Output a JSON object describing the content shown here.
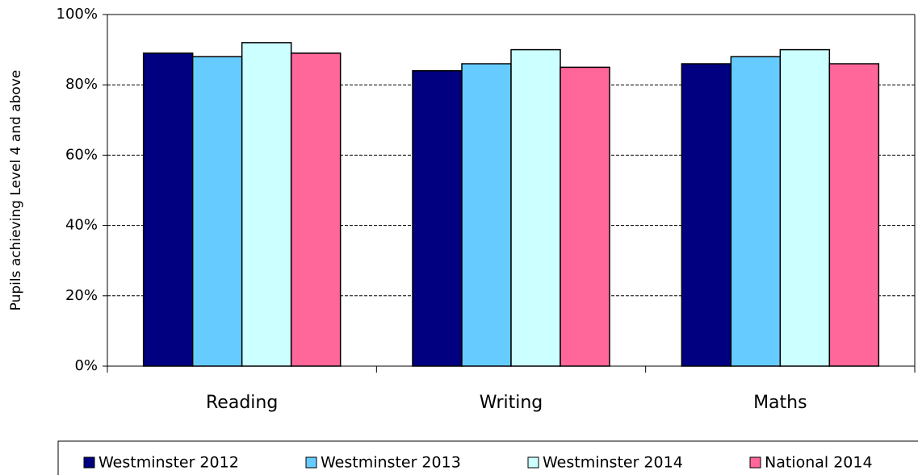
{
  "chart_data": {
    "type": "bar",
    "y_label": "Pupils achieving Level 4 and above",
    "categories": [
      "Reading",
      "Writing",
      "Maths"
    ],
    "series": [
      {
        "name": "Westminster 2012",
        "color": "#000080",
        "values": [
          89,
          84,
          86
        ]
      },
      {
        "name": "Westminster 2013",
        "color": "#66ccff",
        "values": [
          88,
          86,
          88
        ]
      },
      {
        "name": "Westminster 2014",
        "color": "#ccffff",
        "values": [
          92,
          90,
          90
        ]
      },
      {
        "name": "National 2014",
        "color": "#ff6699",
        "values": [
          89,
          85,
          86
        ]
      }
    ],
    "ylim": [
      0,
      100
    ],
    "yticks": [
      {
        "value": 0,
        "label": "0%"
      },
      {
        "value": 20,
        "label": "20%"
      },
      {
        "value": 40,
        "label": "40%"
      },
      {
        "value": 60,
        "label": "60%"
      },
      {
        "value": 80,
        "label": "80%"
      },
      {
        "value": 100,
        "label": "100%"
      }
    ],
    "grid": true
  }
}
